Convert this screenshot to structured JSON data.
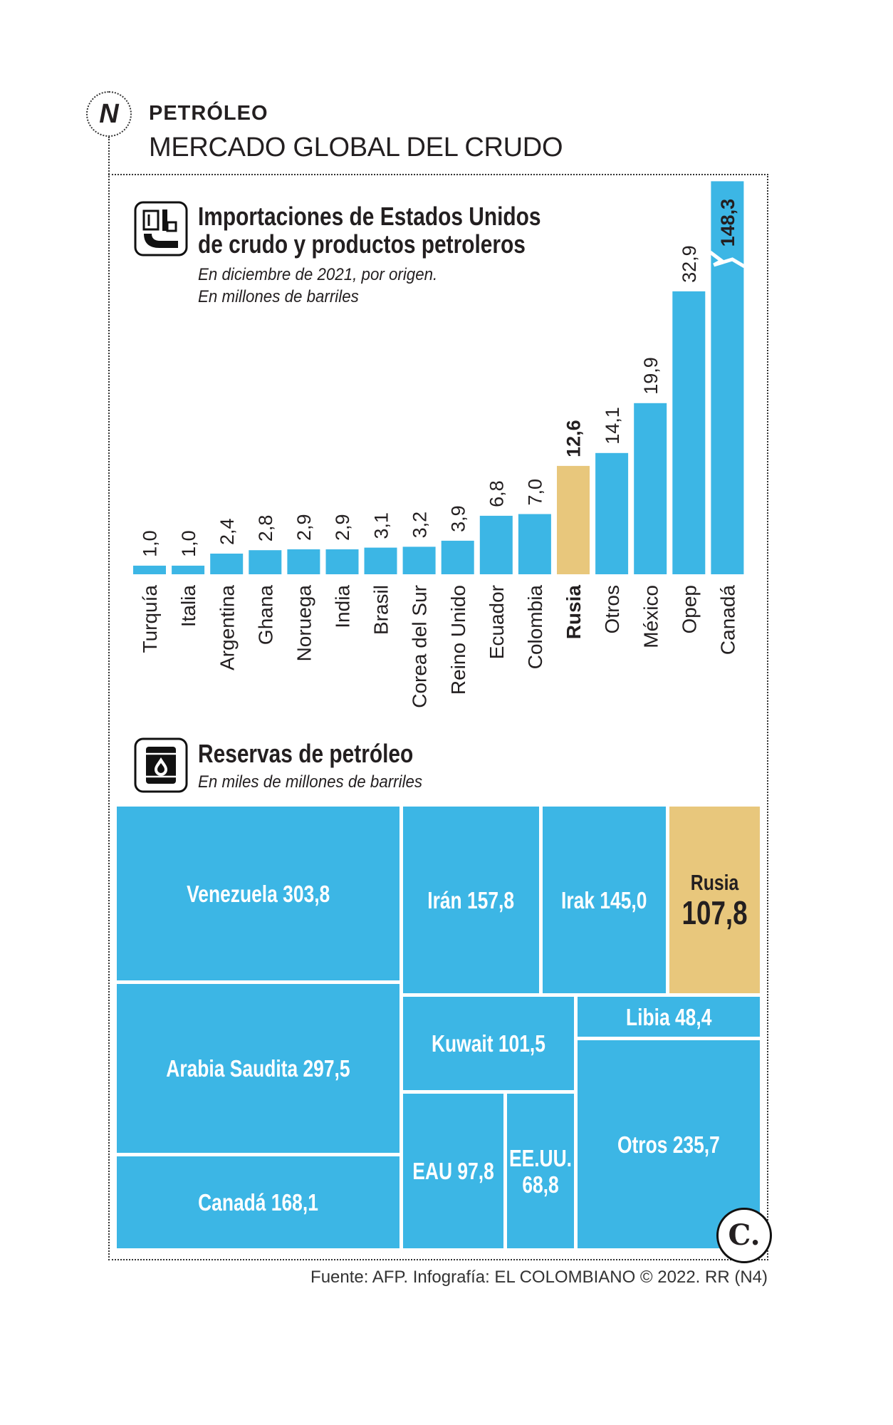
{
  "header": {
    "logo_letter": "N",
    "kicker": "PETRÓLEO",
    "title": "MERCADO GLOBAL DEL CRUDO"
  },
  "chart_data": {
    "type": "bar",
    "title_lines": [
      "Importaciones de Estados Unidos",
      "de crudo y productos petroleros"
    ],
    "subtitle_lines": [
      "En diciembre de 2021, por origen.",
      "En millones de barriles"
    ],
    "icon": "oil-pump-icon",
    "categories": [
      "Turquía",
      "Italia",
      "Argentina",
      "Ghana",
      "Noruega",
      "India",
      "Brasil",
      "Corea del Sur",
      "Reino Unido",
      "Ecuador",
      "Colombia",
      "Rusia",
      "Otros",
      "México",
      "Opep",
      "Canadá"
    ],
    "values": [
      1.0,
      1.0,
      2.4,
      2.8,
      2.9,
      2.9,
      3.1,
      3.2,
      3.9,
      6.8,
      7.0,
      12.6,
      14.1,
      19.9,
      32.9,
      148.3
    ],
    "value_labels": [
      "1,0",
      "1,0",
      "2,4",
      "2,8",
      "2,9",
      "2,9",
      "3,1",
      "3,2",
      "3,9",
      "6,8",
      "7,0",
      "12,6",
      "14,1",
      "19,9",
      "32,9",
      "148,3"
    ],
    "highlight": "Rusia",
    "ylim": [
      0,
      45.7
    ],
    "axis_break": true,
    "grid": false,
    "bar_color": "#3cb6e5",
    "highlight_color": "#e8c77c"
  },
  "reserves": {
    "icon": "oil-barrel-icon",
    "title": "Reservas de petróleo",
    "subtitle": "En miles de millones de barriles",
    "items": [
      {
        "name": "Venezuela",
        "value": "303,8"
      },
      {
        "name": "Arabia Saudita",
        "value": "297,5"
      },
      {
        "name": "Canadá",
        "value": "168,1"
      },
      {
        "name": "Irán",
        "value": "157,8"
      },
      {
        "name": "Irak",
        "value": "145,0"
      },
      {
        "name": "Rusia",
        "value": "107,8"
      },
      {
        "name": "Kuwait",
        "value": "101,5"
      },
      {
        "name": "Libia",
        "value": "48,4"
      },
      {
        "name": "Otros",
        "value": "235,7"
      },
      {
        "name": "EAU",
        "value": "97,8"
      },
      {
        "name": "EE.UU.",
        "value": "68,8"
      }
    ],
    "highlight": "Rusia"
  },
  "footer": {
    "brand_logo": "C.",
    "source": "Fuente: AFP. Infografía: EL COLOMBIANO © 2022. RR (N4)"
  }
}
